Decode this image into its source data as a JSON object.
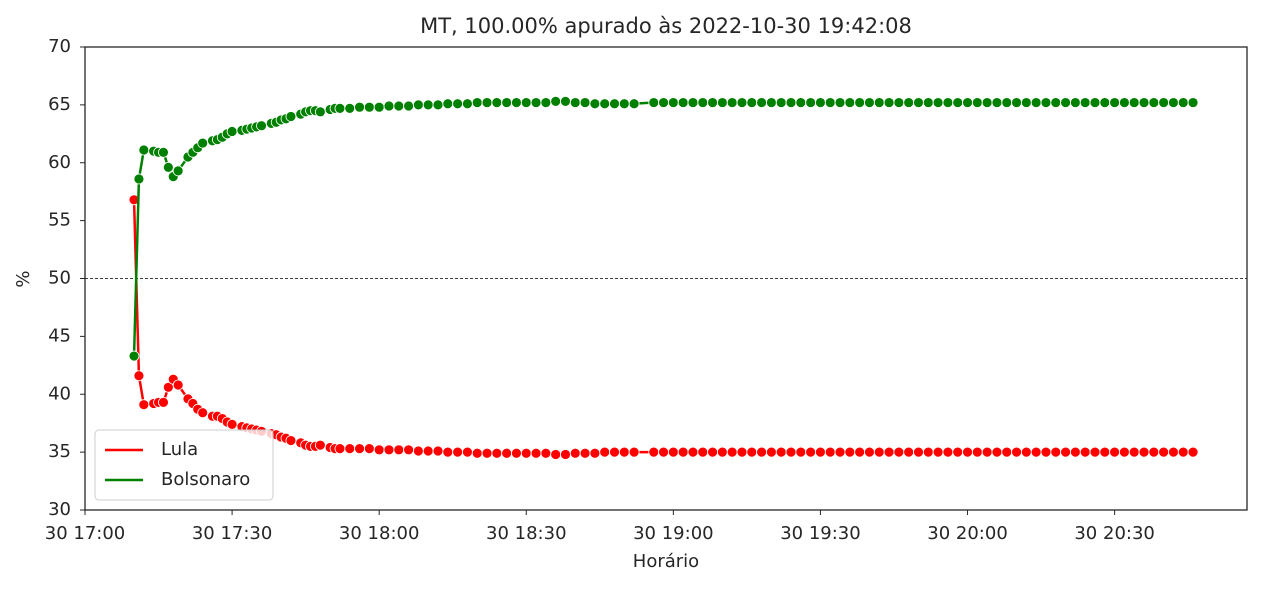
{
  "chart_data": {
    "type": "line",
    "title": "MT, 100.00% apurado às 2022-10-30 19:42:08",
    "xlabel": "Horário",
    "ylabel": "%",
    "x": [
      "30 17:10",
      "30 17:11",
      "30 17:12",
      "30 17:14",
      "30 17:15",
      "30 17:16",
      "30 17:17",
      "30 17:18",
      "30 17:19",
      "30 17:21",
      "30 17:22",
      "30 17:23",
      "30 17:24",
      "30 17:26",
      "30 17:27",
      "30 17:28",
      "30 17:29",
      "30 17:30",
      "30 17:32",
      "30 17:33",
      "30 17:34",
      "30 17:35",
      "30 17:36",
      "30 17:38",
      "30 17:39",
      "30 17:40",
      "30 17:41",
      "30 17:42",
      "30 17:44",
      "30 17:45",
      "30 17:46",
      "30 17:47",
      "30 17:48",
      "30 17:50",
      "30 17:51",
      "30 17:52",
      "30 17:54",
      "30 17:56",
      "30 17:58",
      "30 18:00",
      "30 18:02",
      "30 18:04",
      "30 18:06",
      "30 18:08",
      "30 18:10",
      "30 18:12",
      "30 18:14",
      "30 18:16",
      "30 18:18",
      "30 18:20",
      "30 18:22",
      "30 18:24",
      "30 18:26",
      "30 18:28",
      "30 18:30",
      "30 18:32",
      "30 18:34",
      "30 18:36",
      "30 18:38",
      "30 18:40",
      "30 18:42",
      "30 18:44",
      "30 18:46",
      "30 18:48",
      "30 18:50",
      "30 18:52",
      "30 18:56",
      "30 18:58",
      "30 19:00",
      "30 19:02",
      "30 19:04",
      "30 19:06",
      "30 19:08",
      "30 19:10",
      "30 19:12",
      "30 19:14",
      "30 19:16",
      "30 19:18",
      "30 19:20",
      "30 19:22",
      "30 19:24",
      "30 19:26",
      "30 19:28",
      "30 19:30",
      "30 19:32",
      "30 19:34",
      "30 19:36",
      "30 19:38",
      "30 19:40",
      "30 19:42",
      "30 19:44",
      "30 19:46",
      "30 19:48",
      "30 19:50",
      "30 19:52",
      "30 19:54",
      "30 19:56",
      "30 19:58",
      "30 20:00",
      "30 20:02",
      "30 20:04",
      "30 20:06",
      "30 20:08",
      "30 20:10",
      "30 20:12",
      "30 20:14",
      "30 20:16",
      "30 20:18",
      "30 20:20",
      "30 20:22",
      "30 20:24",
      "30 20:26",
      "30 20:28",
      "30 20:30",
      "30 20:32",
      "30 20:34",
      "30 20:36",
      "30 20:38",
      "30 20:40",
      "30 20:42",
      "30 20:44",
      "30 20:46"
    ],
    "series": [
      {
        "name": "Lula",
        "color": "#ff0000",
        "values": [
          56.8,
          41.6,
          39.1,
          39.2,
          39.3,
          39.3,
          40.6,
          41.3,
          40.8,
          39.6,
          39.2,
          38.7,
          38.4,
          38.1,
          38.1,
          37.9,
          37.6,
          37.4,
          37.2,
          37.1,
          37.0,
          36.9,
          36.8,
          36.6,
          36.5,
          36.3,
          36.2,
          36.0,
          35.8,
          35.6,
          35.5,
          35.5,
          35.6,
          35.4,
          35.3,
          35.3,
          35.3,
          35.3,
          35.3,
          35.2,
          35.2,
          35.2,
          35.2,
          35.1,
          35.1,
          35.1,
          35.0,
          35.0,
          35.0,
          34.9,
          34.9,
          34.9,
          34.9,
          34.9,
          34.9,
          34.9,
          34.9,
          34.8,
          34.8,
          34.9,
          34.9,
          34.9,
          35.0,
          35.0,
          35.0,
          35.0,
          35.0,
          35.0,
          35.0,
          35.0,
          35.0,
          35.0,
          35.0,
          35.0,
          35.0,
          35.0,
          35.0,
          35.0,
          35.0,
          35.0,
          35.0,
          35.0,
          35.0,
          35.0,
          35.0,
          35.0,
          35.0,
          35.0,
          35.0,
          35.0,
          35.0,
          35.0,
          35.0,
          35.0,
          35.0,
          35.0,
          35.0,
          35.0,
          35.0,
          35.0,
          35.0,
          35.0,
          35.0,
          35.0,
          35.0,
          35.0,
          35.0,
          35.0,
          35.0,
          35.0,
          35.0,
          35.0,
          35.0,
          35.0,
          35.0,
          35.0,
          35.0,
          35.0,
          35.0,
          35.0,
          35.0,
          35.0
        ]
      },
      {
        "name": "Bolsonaro",
        "color": "#008000",
        "values": [
          43.3,
          58.6,
          61.1,
          61.0,
          60.9,
          60.9,
          59.6,
          58.8,
          59.3,
          60.5,
          60.9,
          61.3,
          61.7,
          61.9,
          62.0,
          62.2,
          62.5,
          62.7,
          62.8,
          62.9,
          63.0,
          63.1,
          63.2,
          63.4,
          63.5,
          63.7,
          63.8,
          64.0,
          64.2,
          64.4,
          64.5,
          64.5,
          64.4,
          64.6,
          64.7,
          64.7,
          64.7,
          64.8,
          64.8,
          64.8,
          64.9,
          64.9,
          64.9,
          65.0,
          65.0,
          65.0,
          65.1,
          65.1,
          65.1,
          65.2,
          65.2,
          65.2,
          65.2,
          65.2,
          65.2,
          65.2,
          65.2,
          65.3,
          65.3,
          65.2,
          65.2,
          65.1,
          65.1,
          65.1,
          65.1,
          65.1,
          65.2,
          65.2,
          65.2,
          65.2,
          65.2,
          65.2,
          65.2,
          65.2,
          65.2,
          65.2,
          65.2,
          65.2,
          65.2,
          65.2,
          65.2,
          65.2,
          65.2,
          65.2,
          65.2,
          65.2,
          65.2,
          65.2,
          65.2,
          65.2,
          65.2,
          65.2,
          65.2,
          65.2,
          65.2,
          65.2,
          65.2,
          65.2,
          65.2,
          65.2,
          65.2,
          65.2,
          65.2,
          65.2,
          65.2,
          65.2,
          65.2,
          65.2,
          65.2,
          65.2,
          65.2,
          65.2,
          65.2,
          65.2,
          65.2,
          65.2,
          65.2,
          65.2,
          65.2,
          65.2,
          65.2,
          65.2
        ]
      }
    ],
    "xlim": [
      "30 17:00",
      "30 20:57"
    ],
    "xticks": [
      "30 17:00",
      "30 17:30",
      "30 18:00",
      "30 18:30",
      "30 19:00",
      "30 19:30",
      "30 20:00",
      "30 20:30"
    ],
    "ylim": [
      30,
      70
    ],
    "yticks": [
      30,
      35,
      40,
      45,
      50,
      55,
      60,
      65,
      70
    ],
    "reference_line": 50,
    "legend": "lower left",
    "grid": false
  }
}
